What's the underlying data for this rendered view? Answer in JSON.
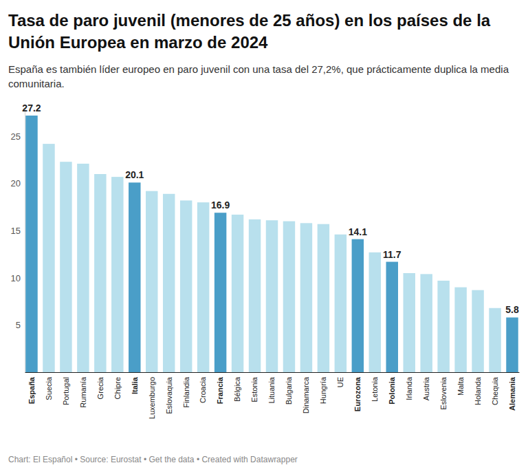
{
  "chart_data": {
    "type": "bar",
    "title": "Tasa de paro juvenil (menores de 25 años) en los países de la Unión Europea en marzo de 2024",
    "subtitle": "España es también líder europeo en paro juvenil con una tasa del 27,2%, que prácticamente duplica la media comunitaria.",
    "footer": "Chart: El Español • Source: Eurostat • Get the data • Created with Datawrapper",
    "categories": [
      "España",
      "Suecia",
      "Portugal",
      "Rumanía",
      "Grecia",
      "Chipre",
      "Italia",
      "Luxemburgo",
      "Eslovaquia",
      "Finlandia",
      "Croacia",
      "Francia",
      "Bélgica",
      "Estonia",
      "Lituania",
      "Bulgaria",
      "Dinamarca",
      "Hungría",
      "UE",
      "Eurozona",
      "Letonia",
      "Polonia",
      "Irlanda",
      "Austria",
      "Eslovenia",
      "Malta",
      "Holanda",
      "Chequia",
      "Alemania"
    ],
    "values": [
      27.2,
      24.2,
      22.3,
      22.1,
      21.0,
      20.7,
      20.1,
      19.2,
      18.9,
      18.2,
      18.0,
      16.9,
      16.7,
      16.2,
      16.1,
      16.0,
      15.8,
      15.7,
      14.6,
      14.1,
      12.7,
      11.7,
      10.5,
      10.4,
      9.7,
      9.0,
      8.7,
      6.8,
      5.8
    ],
    "value_labels": [
      "27.2",
      null,
      null,
      null,
      null,
      null,
      "20.1",
      null,
      null,
      null,
      null,
      "16.9",
      null,
      null,
      null,
      null,
      null,
      null,
      null,
      "14.1",
      null,
      "11.7",
      null,
      null,
      null,
      null,
      null,
      null,
      "5.8"
    ],
    "colors": [
      "#4a9ec8",
      "#b8e0ed",
      "#b8e0ed",
      "#b8e0ed",
      "#b8e0ed",
      "#b8e0ed",
      "#4a9ec8",
      "#b8e0ed",
      "#b8e0ed",
      "#b8e0ed",
      "#b8e0ed",
      "#4a9ec8",
      "#b8e0ed",
      "#b8e0ed",
      "#b8e0ed",
      "#b8e0ed",
      "#b8e0ed",
      "#b8e0ed",
      "#b8e0ed",
      "#4a9ec8",
      "#b8e0ed",
      "#4a9ec8",
      "#b8e0ed",
      "#b8e0ed",
      "#b8e0ed",
      "#b8e0ed",
      "#b8e0ed",
      "#b8e0ed",
      "#4a9ec8"
    ],
    "data_labels": true,
    "ylim": [
      0,
      28
    ],
    "yticks": [
      5,
      10,
      15,
      20,
      25
    ],
    "grid": false
  }
}
